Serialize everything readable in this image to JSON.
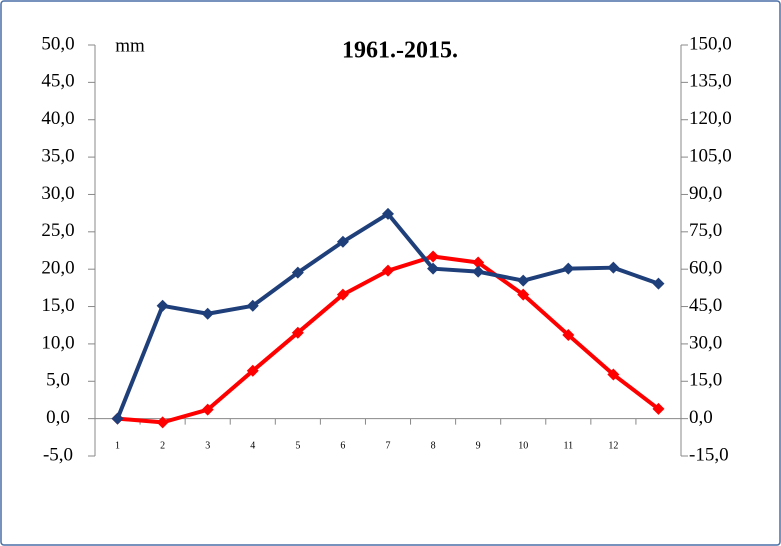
{
  "chart_data": {
    "type": "line",
    "title": "1961.-2015.",
    "y2_label": "mm",
    "categories": [
      "1",
      "2",
      "3",
      "4",
      "5",
      "6",
      "7",
      "8",
      "9",
      "10",
      "11",
      "12",
      null
    ],
    "series": [
      {
        "color": "#ff0000",
        "axis": "y",
        "values": [
          0,
          -0.5,
          1.2,
          6.4,
          11.5,
          16.6,
          19.8,
          21.7,
          20.9,
          16.6,
          11.2,
          5.9,
          1.3
        ]
      },
      {
        "color": "#1f3f7a",
        "axis": "y2",
        "values": [
          0,
          45.3,
          42.1,
          45.3,
          58.6,
          71,
          82.2,
          60.2,
          59,
          55.4,
          60.2,
          60.6,
          54.2
        ]
      }
    ],
    "ylim": [
      -5,
      50
    ],
    "yticks": [
      {
        "value": -5,
        "label": "-5,0"
      },
      {
        "value": 0,
        "label": "0,0"
      },
      {
        "value": 5,
        "label": "5,0"
      },
      {
        "value": 10,
        "label": "10,0"
      },
      {
        "value": 15,
        "label": "15,0"
      },
      {
        "value": 20,
        "label": "20,0"
      },
      {
        "value": 25,
        "label": "25,0"
      },
      {
        "value": 30,
        "label": "30,0"
      },
      {
        "value": 35,
        "label": "35,0"
      },
      {
        "value": 40,
        "label": "40,0"
      },
      {
        "value": 45,
        "label": "45,0"
      },
      {
        "value": 50,
        "label": "50,0"
      }
    ],
    "y2lim": [
      -15,
      150
    ],
    "y2ticks": [
      {
        "value": -15,
        "label": "-15,0"
      },
      {
        "value": 0,
        "label": "0,0"
      },
      {
        "value": 15,
        "label": "15,0"
      },
      {
        "value": 30,
        "label": "30,0"
      },
      {
        "value": 45,
        "label": "45,0"
      },
      {
        "value": 60,
        "label": "60,0"
      },
      {
        "value": 75,
        "label": "75,0"
      },
      {
        "value": 90,
        "label": "90,0"
      },
      {
        "value": 105,
        "label": "105,0"
      },
      {
        "value": 120,
        "label": "120,0"
      },
      {
        "value": 135,
        "label": "135,0"
      },
      {
        "value": 150,
        "label": "150,0"
      }
    ]
  }
}
